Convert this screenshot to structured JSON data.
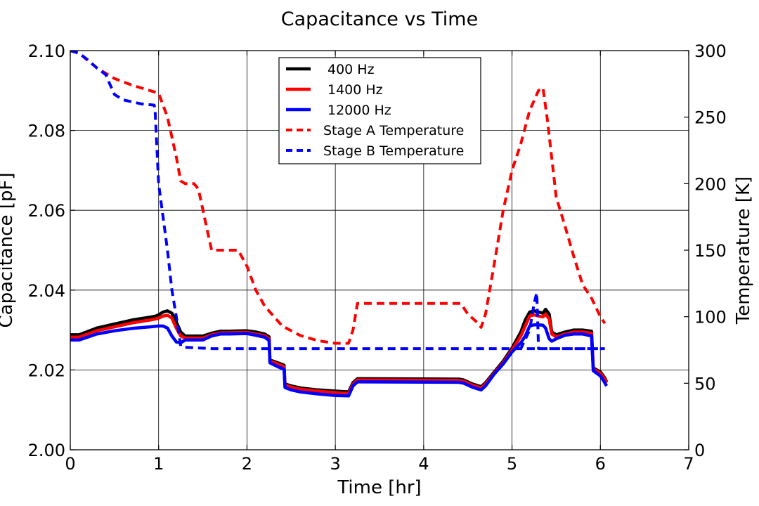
{
  "chart_data": {
    "type": "line",
    "title": "Capacitance vs Time",
    "xlabel": "Time [hr]",
    "ylabel": "Capacitance [pF]",
    "y2label": "Temperature [K]",
    "xlim": [
      0,
      7
    ],
    "ylim": [
      2.0,
      2.1
    ],
    "y2lim": [
      0,
      300
    ],
    "xticks": [
      "0",
      "1",
      "2",
      "3",
      "4",
      "5",
      "6",
      "7"
    ],
    "yticks": [
      "2.00",
      "2.02",
      "2.04",
      "2.06",
      "2.08",
      "2.10"
    ],
    "y2ticks": [
      "0",
      "50",
      "100",
      "150",
      "200",
      "250",
      "300"
    ],
    "grid": true,
    "legend": "top-center",
    "series": [
      {
        "name": "400 Hz",
        "color": "#000000",
        "dash": "solid",
        "axis": "left",
        "points": [
          [
            0,
            2.0288
          ],
          [
            0.1,
            2.0288
          ],
          [
            0.3,
            2.0305
          ],
          [
            0.5,
            2.0315
          ],
          [
            0.7,
            2.0325
          ],
          [
            0.9,
            2.0332
          ],
          [
            0.97,
            2.0335
          ],
          [
            1.0,
            2.0338
          ],
          [
            1.05,
            2.0345
          ],
          [
            1.1,
            2.0348
          ],
          [
            1.15,
            2.0342
          ],
          [
            1.2,
            2.032
          ],
          [
            1.25,
            2.0295
          ],
          [
            1.3,
            2.0285
          ],
          [
            1.45,
            2.0285
          ],
          [
            1.5,
            2.0285
          ],
          [
            1.6,
            2.0292
          ],
          [
            1.7,
            2.0297
          ],
          [
            1.8,
            2.0297
          ],
          [
            1.95,
            2.0298
          ],
          [
            2.0,
            2.0298
          ],
          [
            2.1,
            2.0295
          ],
          [
            2.2,
            2.029
          ],
          [
            2.25,
            2.0283
          ],
          [
            2.26,
            2.0225
          ],
          [
            2.35,
            2.0218
          ],
          [
            2.42,
            2.0212
          ],
          [
            2.43,
            2.0165
          ],
          [
            2.5,
            2.016
          ],
          [
            2.6,
            2.0155
          ],
          [
            2.8,
            2.015
          ],
          [
            3.0,
            2.0147
          ],
          [
            3.15,
            2.0145
          ],
          [
            3.2,
            2.0168
          ],
          [
            3.25,
            2.0178
          ],
          [
            3.3,
            2.0178
          ],
          [
            4.4,
            2.0177
          ],
          [
            4.45,
            2.0175
          ],
          [
            4.55,
            2.0165
          ],
          [
            4.65,
            2.0158
          ],
          [
            4.7,
            2.0168
          ],
          [
            4.8,
            2.0195
          ],
          [
            4.9,
            2.0222
          ],
          [
            5.0,
            2.0255
          ],
          [
            5.1,
            2.0295
          ],
          [
            5.15,
            2.0325
          ],
          [
            5.2,
            2.0345
          ],
          [
            5.25,
            2.0348
          ],
          [
            5.3,
            2.0345
          ],
          [
            5.35,
            2.0342
          ],
          [
            5.38,
            2.0352
          ],
          [
            5.42,
            2.034
          ],
          [
            5.45,
            2.0295
          ],
          [
            5.5,
            2.0288
          ],
          [
            5.6,
            2.0295
          ],
          [
            5.7,
            2.03
          ],
          [
            5.8,
            2.03
          ],
          [
            5.9,
            2.0297
          ],
          [
            5.92,
            2.0205
          ],
          [
            6.0,
            2.0195
          ],
          [
            6.05,
            2.018
          ],
          [
            6.07,
            2.017
          ]
        ]
      },
      {
        "name": "1400 Hz",
        "color": "#ff0000",
        "dash": "solid",
        "axis": "left",
        "points": [
          [
            0,
            2.0282
          ],
          [
            0.1,
            2.0282
          ],
          [
            0.3,
            2.0298
          ],
          [
            0.5,
            2.0308
          ],
          [
            0.7,
            2.0318
          ],
          [
            0.9,
            2.0325
          ],
          [
            0.97,
            2.0328
          ],
          [
            1.0,
            2.033
          ],
          [
            1.05,
            2.0335
          ],
          [
            1.1,
            2.0337
          ],
          [
            1.15,
            2.033
          ],
          [
            1.2,
            2.0305
          ],
          [
            1.25,
            2.0285
          ],
          [
            1.3,
            2.028
          ],
          [
            1.45,
            2.028
          ],
          [
            1.5,
            2.028
          ],
          [
            1.6,
            2.0288
          ],
          [
            1.7,
            2.0293
          ],
          [
            1.8,
            2.0293
          ],
          [
            1.95,
            2.0294
          ],
          [
            2.0,
            2.0294
          ],
          [
            2.1,
            2.029
          ],
          [
            2.2,
            2.0286
          ],
          [
            2.25,
            2.0278
          ],
          [
            2.26,
            2.0222
          ],
          [
            2.35,
            2.0215
          ],
          [
            2.42,
            2.0208
          ],
          [
            2.43,
            2.0162
          ],
          [
            2.5,
            2.0157
          ],
          [
            2.6,
            2.0152
          ],
          [
            2.8,
            2.0147
          ],
          [
            3.0,
            2.0143
          ],
          [
            3.15,
            2.0141
          ],
          [
            3.2,
            2.0164
          ],
          [
            3.25,
            2.0175
          ],
          [
            3.3,
            2.0175
          ],
          [
            4.4,
            2.0174
          ],
          [
            4.45,
            2.0172
          ],
          [
            4.55,
            2.0162
          ],
          [
            4.65,
            2.0155
          ],
          [
            4.7,
            2.0165
          ],
          [
            4.8,
            2.0192
          ],
          [
            4.9,
            2.0218
          ],
          [
            5.0,
            2.025
          ],
          [
            5.1,
            2.0285
          ],
          [
            5.15,
            2.031
          ],
          [
            5.2,
            2.0335
          ],
          [
            5.25,
            2.0338
          ],
          [
            5.3,
            2.0335
          ],
          [
            5.35,
            2.0333
          ],
          [
            5.38,
            2.034
          ],
          [
            5.42,
            2.0328
          ],
          [
            5.45,
            2.029
          ],
          [
            5.5,
            2.0283
          ],
          [
            5.6,
            2.029
          ],
          [
            5.7,
            2.0295
          ],
          [
            5.8,
            2.0295
          ],
          [
            5.9,
            2.0292
          ],
          [
            5.92,
            2.0202
          ],
          [
            6.0,
            2.0192
          ],
          [
            6.05,
            2.0177
          ],
          [
            6.07,
            2.0168
          ]
        ]
      },
      {
        "name": "12000 Hz",
        "color": "#0000ff",
        "dash": "solid",
        "axis": "left",
        "points": [
          [
            0,
            2.0275
          ],
          [
            0.1,
            2.0275
          ],
          [
            0.3,
            2.029
          ],
          [
            0.5,
            2.0298
          ],
          [
            0.7,
            2.0304
          ],
          [
            0.9,
            2.0308
          ],
          [
            1.0,
            2.031
          ],
          [
            1.05,
            2.031
          ],
          [
            1.1,
            2.0305
          ],
          [
            1.15,
            2.0285
          ],
          [
            1.2,
            2.027
          ],
          [
            1.25,
            2.0268
          ],
          [
            1.3,
            2.0275
          ],
          [
            1.45,
            2.0275
          ],
          [
            1.5,
            2.0275
          ],
          [
            1.6,
            2.0285
          ],
          [
            1.7,
            2.029
          ],
          [
            1.8,
            2.029
          ],
          [
            1.95,
            2.0291
          ],
          [
            2.0,
            2.0291
          ],
          [
            2.1,
            2.0287
          ],
          [
            2.2,
            2.0282
          ],
          [
            2.25,
            2.0274
          ],
          [
            2.26,
            2.0218
          ],
          [
            2.35,
            2.0208
          ],
          [
            2.42,
            2.0202
          ],
          [
            2.43,
            2.0156
          ],
          [
            2.5,
            2.015
          ],
          [
            2.6,
            2.0145
          ],
          [
            2.8,
            2.014
          ],
          [
            3.0,
            2.0136
          ],
          [
            3.15,
            2.0135
          ],
          [
            3.2,
            2.016
          ],
          [
            3.25,
            2.017
          ],
          [
            3.3,
            2.017
          ],
          [
            4.4,
            2.0169
          ],
          [
            4.45,
            2.0167
          ],
          [
            4.55,
            2.0157
          ],
          [
            4.65,
            2.015
          ],
          [
            4.7,
            2.016
          ],
          [
            4.8,
            2.019
          ],
          [
            4.9,
            2.0215
          ],
          [
            5.0,
            2.0245
          ],
          [
            5.1,
            2.0268
          ],
          [
            5.15,
            2.0285
          ],
          [
            5.2,
            2.031
          ],
          [
            5.25,
            2.0313
          ],
          [
            5.3,
            2.0313
          ],
          [
            5.35,
            2.0312
          ],
          [
            5.38,
            2.0305
          ],
          [
            5.42,
            2.0278
          ],
          [
            5.45,
            2.0272
          ],
          [
            5.5,
            2.0278
          ],
          [
            5.6,
            2.0287
          ],
          [
            5.7,
            2.029
          ],
          [
            5.8,
            2.029
          ],
          [
            5.9,
            2.0285
          ],
          [
            5.92,
            2.0198
          ],
          [
            6.0,
            2.0185
          ],
          [
            6.05,
            2.0168
          ],
          [
            6.07,
            2.016
          ]
        ]
      },
      {
        "name": "Stage A Temperature",
        "color": "#ff0000",
        "dash": "dashed",
        "axis": "right",
        "points": [
          [
            0,
            300
          ],
          [
            0.1,
            298
          ],
          [
            0.3,
            287
          ],
          [
            0.4,
            283
          ],
          [
            0.5,
            279
          ],
          [
            0.7,
            274
          ],
          [
            0.9,
            270
          ],
          [
            1.0,
            268
          ],
          [
            1.1,
            250
          ],
          [
            1.2,
            220
          ],
          [
            1.25,
            202
          ],
          [
            1.3,
            200
          ],
          [
            1.4,
            200
          ],
          [
            1.45,
            196
          ],
          [
            1.55,
            165
          ],
          [
            1.6,
            150
          ],
          [
            1.7,
            150
          ],
          [
            1.9,
            150
          ],
          [
            2.0,
            138
          ],
          [
            2.1,
            120
          ],
          [
            2.2,
            108
          ],
          [
            2.4,
            93
          ],
          [
            2.6,
            86
          ],
          [
            2.8,
            82
          ],
          [
            3.0,
            80
          ],
          [
            3.15,
            80
          ],
          [
            3.2,
            90
          ],
          [
            3.25,
            110
          ],
          [
            3.4,
            110
          ],
          [
            4.3,
            110
          ],
          [
            4.42,
            110
          ],
          [
            4.5,
            102
          ],
          [
            4.6,
            96
          ],
          [
            4.65,
            92
          ],
          [
            4.7,
            102
          ],
          [
            4.8,
            140
          ],
          [
            4.9,
            180
          ],
          [
            5.0,
            210
          ],
          [
            5.1,
            230
          ],
          [
            5.2,
            255
          ],
          [
            5.3,
            270
          ],
          [
            5.35,
            272
          ],
          [
            5.4,
            248
          ],
          [
            5.5,
            190
          ],
          [
            5.6,
            168
          ],
          [
            5.7,
            145
          ],
          [
            5.8,
            124
          ],
          [
            5.9,
            114
          ],
          [
            6.0,
            100
          ],
          [
            6.05,
            95
          ]
        ]
      },
      {
        "name": "Stage B Temperature",
        "color": "#0000ff",
        "dash": "dashed",
        "axis": "right",
        "points": [
          [
            0,
            300
          ],
          [
            0.1,
            298
          ],
          [
            0.2,
            293
          ],
          [
            0.3,
            287
          ],
          [
            0.4,
            282
          ],
          [
            0.5,
            267
          ],
          [
            0.6,
            263
          ],
          [
            0.8,
            260
          ],
          [
            0.95,
            259
          ],
          [
            0.96,
            255
          ],
          [
            1.0,
            200
          ],
          [
            1.05,
            175
          ],
          [
            1.1,
            150
          ],
          [
            1.15,
            120
          ],
          [
            1.2,
            100
          ],
          [
            1.25,
            78
          ],
          [
            1.3,
            77
          ],
          [
            1.6,
            76
          ],
          [
            2.0,
            76
          ],
          [
            6.0,
            76
          ],
          [
            5.1,
            76
          ],
          [
            5.2,
            90
          ],
          [
            5.25,
            110
          ],
          [
            5.28,
            118
          ],
          [
            5.3,
            76
          ],
          [
            5.35,
            76
          ],
          [
            6.05,
            76
          ]
        ]
      }
    ]
  }
}
